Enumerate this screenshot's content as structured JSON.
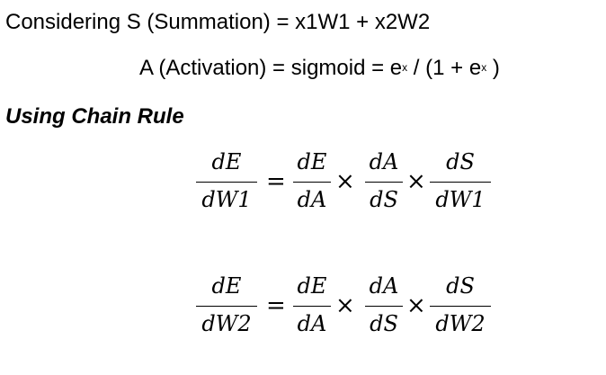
{
  "definitions": {
    "line1": "Considering S (Summation) = x1W1 + x2W2",
    "line2_before": "A (Activation) = sigmoid = e",
    "line2_exp1": "x",
    "line2_middle": " /  (1 + e",
    "line2_exp2": "x",
    "line2_after": " )"
  },
  "heading": "Using Chain Rule",
  "operators": {
    "equals": "=",
    "times": "×"
  },
  "equations": [
    {
      "lhs": {
        "num": "dE",
        "den": "dW1"
      },
      "rhs": [
        {
          "num": "dE",
          "den": "dA"
        },
        {
          "num": "dA",
          "den": "dS"
        },
        {
          "num": "dS",
          "den": "dW1"
        }
      ]
    },
    {
      "lhs": {
        "num": "dE",
        "den": "dW2"
      },
      "rhs": [
        {
          "num": "dE",
          "den": "dA"
        },
        {
          "num": "dA",
          "den": "dS"
        },
        {
          "num": "dS",
          "den": "dW2"
        }
      ]
    }
  ]
}
